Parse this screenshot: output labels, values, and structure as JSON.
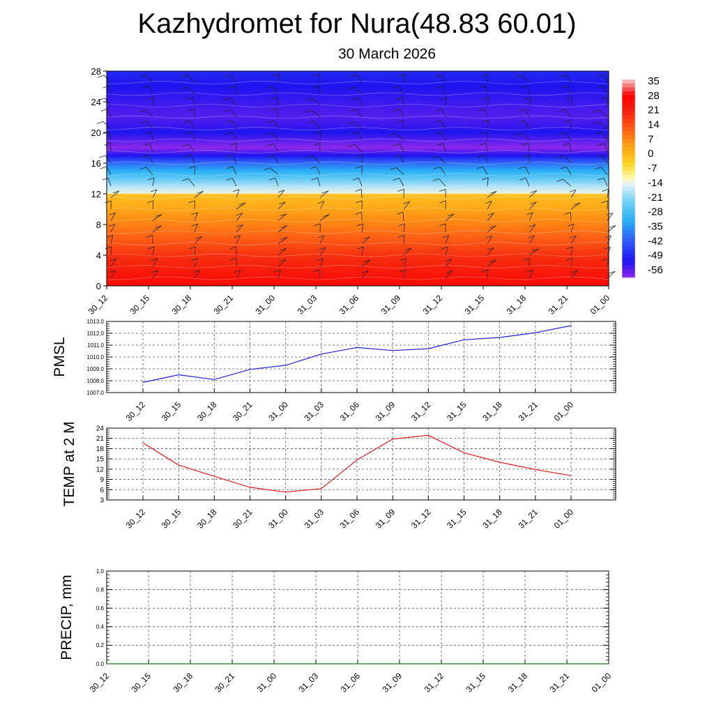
{
  "header": {
    "title": "Kazhydromet for Nura(48.83 60.01)",
    "subtitle": "30 March 2026"
  },
  "colors": {
    "pmsl_line": "#1f1fd6",
    "temp_line": "#e01a1a",
    "precip_line": "#1a7a1a",
    "grid": "#555555"
  },
  "time_labels": [
    "30_12",
    "30_15",
    "30_18",
    "30_21",
    "31_00",
    "31_03",
    "31_06",
    "31_09",
    "31_12",
    "31_15",
    "31_18",
    "31_21",
    "01_00"
  ],
  "colorbar": {
    "labels": [
      "35",
      "28",
      "21",
      "14",
      "7",
      "0",
      "-7",
      "-14",
      "-21",
      "-28",
      "-35",
      "-42",
      "-49",
      "-56"
    ]
  },
  "chart_data": [
    {
      "type": "heatmap",
      "name": "height-time-section",
      "title": "",
      "ylabel": "",
      "xlim": [
        0,
        12
      ],
      "ylim": [
        0,
        28
      ],
      "yticks": [
        "0",
        "4",
        "8",
        "12",
        "16",
        "20",
        "24",
        "28"
      ],
      "categories": [
        "30_12",
        "30_15",
        "30_18",
        "30_21",
        "31_00",
        "31_03",
        "31_06",
        "31_09",
        "31_12",
        "31_15",
        "31_18",
        "31_21",
        "01_00"
      ],
      "temperature_profile": {
        "heights": [
          0,
          2,
          4,
          6,
          8,
          10,
          11.9,
          12.1,
          13,
          14,
          15,
          16,
          17,
          18,
          19,
          20,
          22,
          24,
          26,
          28
        ],
        "values": [
          28,
          24,
          20,
          14,
          9,
          4,
          0,
          -13,
          -18,
          -25,
          -32,
          -40,
          -52,
          -61,
          -56,
          -52,
          -56,
          -54,
          -52,
          -49
        ]
      },
      "colorbar_range": [
        -60,
        38
      ]
    },
    {
      "type": "line",
      "name": "pmsl",
      "ylabel": "PMSL",
      "ylim": [
        1007.0,
        1013.0
      ],
      "yticks": [
        "1007.0",
        "1008.0",
        "1009.0",
        "1010.0",
        "1011.0",
        "1012.0",
        "1013.0"
      ],
      "x": [
        0,
        1,
        2,
        3,
        4,
        5,
        6,
        7,
        8,
        9,
        10,
        11,
        12
      ],
      "categories": [
        "30_12",
        "30_15",
        "30_18",
        "30_21",
        "31_00",
        "31_03",
        "31_06",
        "31_09",
        "31_12",
        "31_15",
        "31_18",
        "31_21",
        "01_00"
      ],
      "values": [
        1007.85,
        1008.5,
        1008.1,
        1008.95,
        1009.3,
        1010.25,
        1010.8,
        1010.55,
        1010.7,
        1011.45,
        1011.65,
        1012.05,
        1012.65
      ]
    },
    {
      "type": "line",
      "name": "temp-2m",
      "ylabel": "TEMP at 2 M",
      "ylim": [
        3,
        24
      ],
      "yticks": [
        "3",
        "6",
        "9",
        "12",
        "15",
        "18",
        "21",
        "24"
      ],
      "x": [
        0,
        1,
        2,
        3,
        4,
        5,
        6,
        7,
        8,
        9,
        10,
        11,
        12
      ],
      "categories": [
        "30_12",
        "30_15",
        "30_18",
        "30_21",
        "31_00",
        "31_03",
        "31_06",
        "31_09",
        "31_12",
        "31_15",
        "31_18",
        "31_21",
        "01_00"
      ],
      "values": [
        19.7,
        13.2,
        9.9,
        6.7,
        5.3,
        6.3,
        14.7,
        20.8,
        21.9,
        16.8,
        14.0,
        11.9,
        10.1
      ]
    },
    {
      "type": "line",
      "name": "precip",
      "ylabel": "PRECIP, mm",
      "ylim": [
        0.0,
        1.0
      ],
      "yticks": [
        "0.0",
        "0.2",
        "0.4",
        "0.6",
        "0.8",
        "1.0"
      ],
      "x": [
        0,
        1,
        2,
        3,
        4,
        5,
        6,
        7,
        8,
        9,
        10,
        11,
        12
      ],
      "categories": [
        "30_12",
        "30_15",
        "30_18",
        "30_21",
        "31_00",
        "31_03",
        "31_06",
        "31_09",
        "31_12",
        "31_15",
        "31_18",
        "31_21",
        "01_00"
      ],
      "values": [
        0,
        0,
        0,
        0,
        0,
        0,
        0,
        0,
        0,
        0,
        0,
        0,
        0
      ]
    }
  ]
}
